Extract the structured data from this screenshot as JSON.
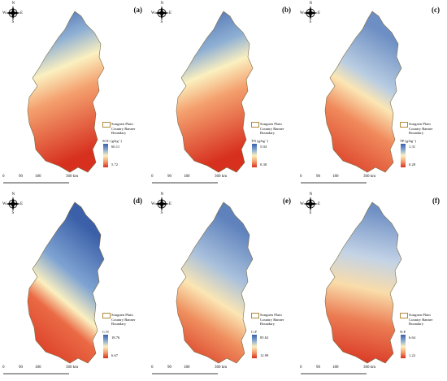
{
  "panels": [
    {
      "id": "a",
      "label": "(a)",
      "variable": "SOC (g/kg⁻)",
      "legend_high": "60.11",
      "legend_low": "5.72"
    },
    {
      "id": "b",
      "label": "(b)",
      "variable": "TN (g/kg⁻)",
      "legend_high": "5.04",
      "legend_low": "0.38"
    },
    {
      "id": "c",
      "label": "(c)",
      "variable": "TP (g/kg⁻)",
      "legend_high": "1.31",
      "legend_low": "0.28"
    },
    {
      "id": "d",
      "label": "(d)",
      "variable": "C:N",
      "legend_high": "18.76",
      "legend_low": "6.67"
    },
    {
      "id": "e",
      "label": "(e)",
      "variable": "C:P",
      "legend_high": "85.62",
      "legend_low": "12.99"
    },
    {
      "id": "f",
      "label": "(f)",
      "variable": "N:P",
      "legend_high": "6.64",
      "legend_low": "1.22"
    }
  ],
  "legend": {
    "line1": "Songnen Plain",
    "line2": "Country Banner",
    "line3": "Boundary"
  },
  "compass": {
    "n": "N",
    "s": "S",
    "e": "E",
    "w": "W"
  },
  "scale": {
    "t0": "0",
    "t1": "90",
    "t2": "180",
    "t3": "360 km"
  },
  "colors": {
    "high": "#3b5fa8",
    "mid": "#fbf0c0",
    "low": "#d7301f",
    "boundary": "#b08a3a"
  }
}
